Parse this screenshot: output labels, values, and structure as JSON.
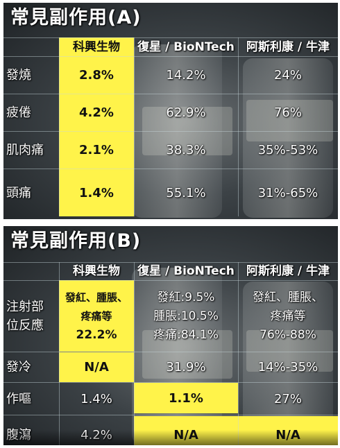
{
  "panel_a": {
    "title": "常見副作用(A)",
    "columns": [
      "科興生物",
      "復星 / BioNTech",
      "阿斯利康 / 牛津"
    ],
    "rows": [
      {
        "label": "發燒",
        "values": [
          "2.8%",
          "14.2%",
          "24%"
        ]
      },
      {
        "label": "疲倦",
        "values": [
          "4.2%",
          "62.9%",
          "76%"
        ]
      },
      {
        "label": "肌肉痛",
        "values": [
          "2.1%",
          "38.3%",
          "35%-53%"
        ]
      },
      {
        "label": "頭痛",
        "values": [
          "1.4%",
          "55.1%",
          "31%-65%"
        ]
      }
    ]
  },
  "panel_b": {
    "title": "常見副作用(B)",
    "columns": [
      "科興生物",
      "復星 / BioNTech",
      "阿斯利康 / 牛津"
    ],
    "row1": {
      "label_line1": "注射部",
      "label_line2": "位反應",
      "sinovac": [
        "發紅、腫脹、",
        "疼痛等",
        "22.2%"
      ],
      "biontech": [
        "發紅:9.5%",
        "腫脹:10.5%",
        "疼痛:84.1%"
      ],
      "az": [
        "發紅、腫脹、",
        "疼痛等",
        "76%-88%"
      ]
    },
    "rows": [
      {
        "label": "發冷",
        "values": [
          "N/A",
          "31.9%",
          "14%-35%"
        ]
      },
      {
        "label": "作嘔",
        "values": [
          "1.4%",
          "1.1%",
          "27%"
        ]
      },
      {
        "label": "腹瀉",
        "values": [
          "4.2%",
          "N/A",
          "N/A"
        ]
      }
    ]
  },
  "colors": {
    "highlight": "#fff34a",
    "text_light": "#ffffff",
    "text_dark": "#111111"
  }
}
